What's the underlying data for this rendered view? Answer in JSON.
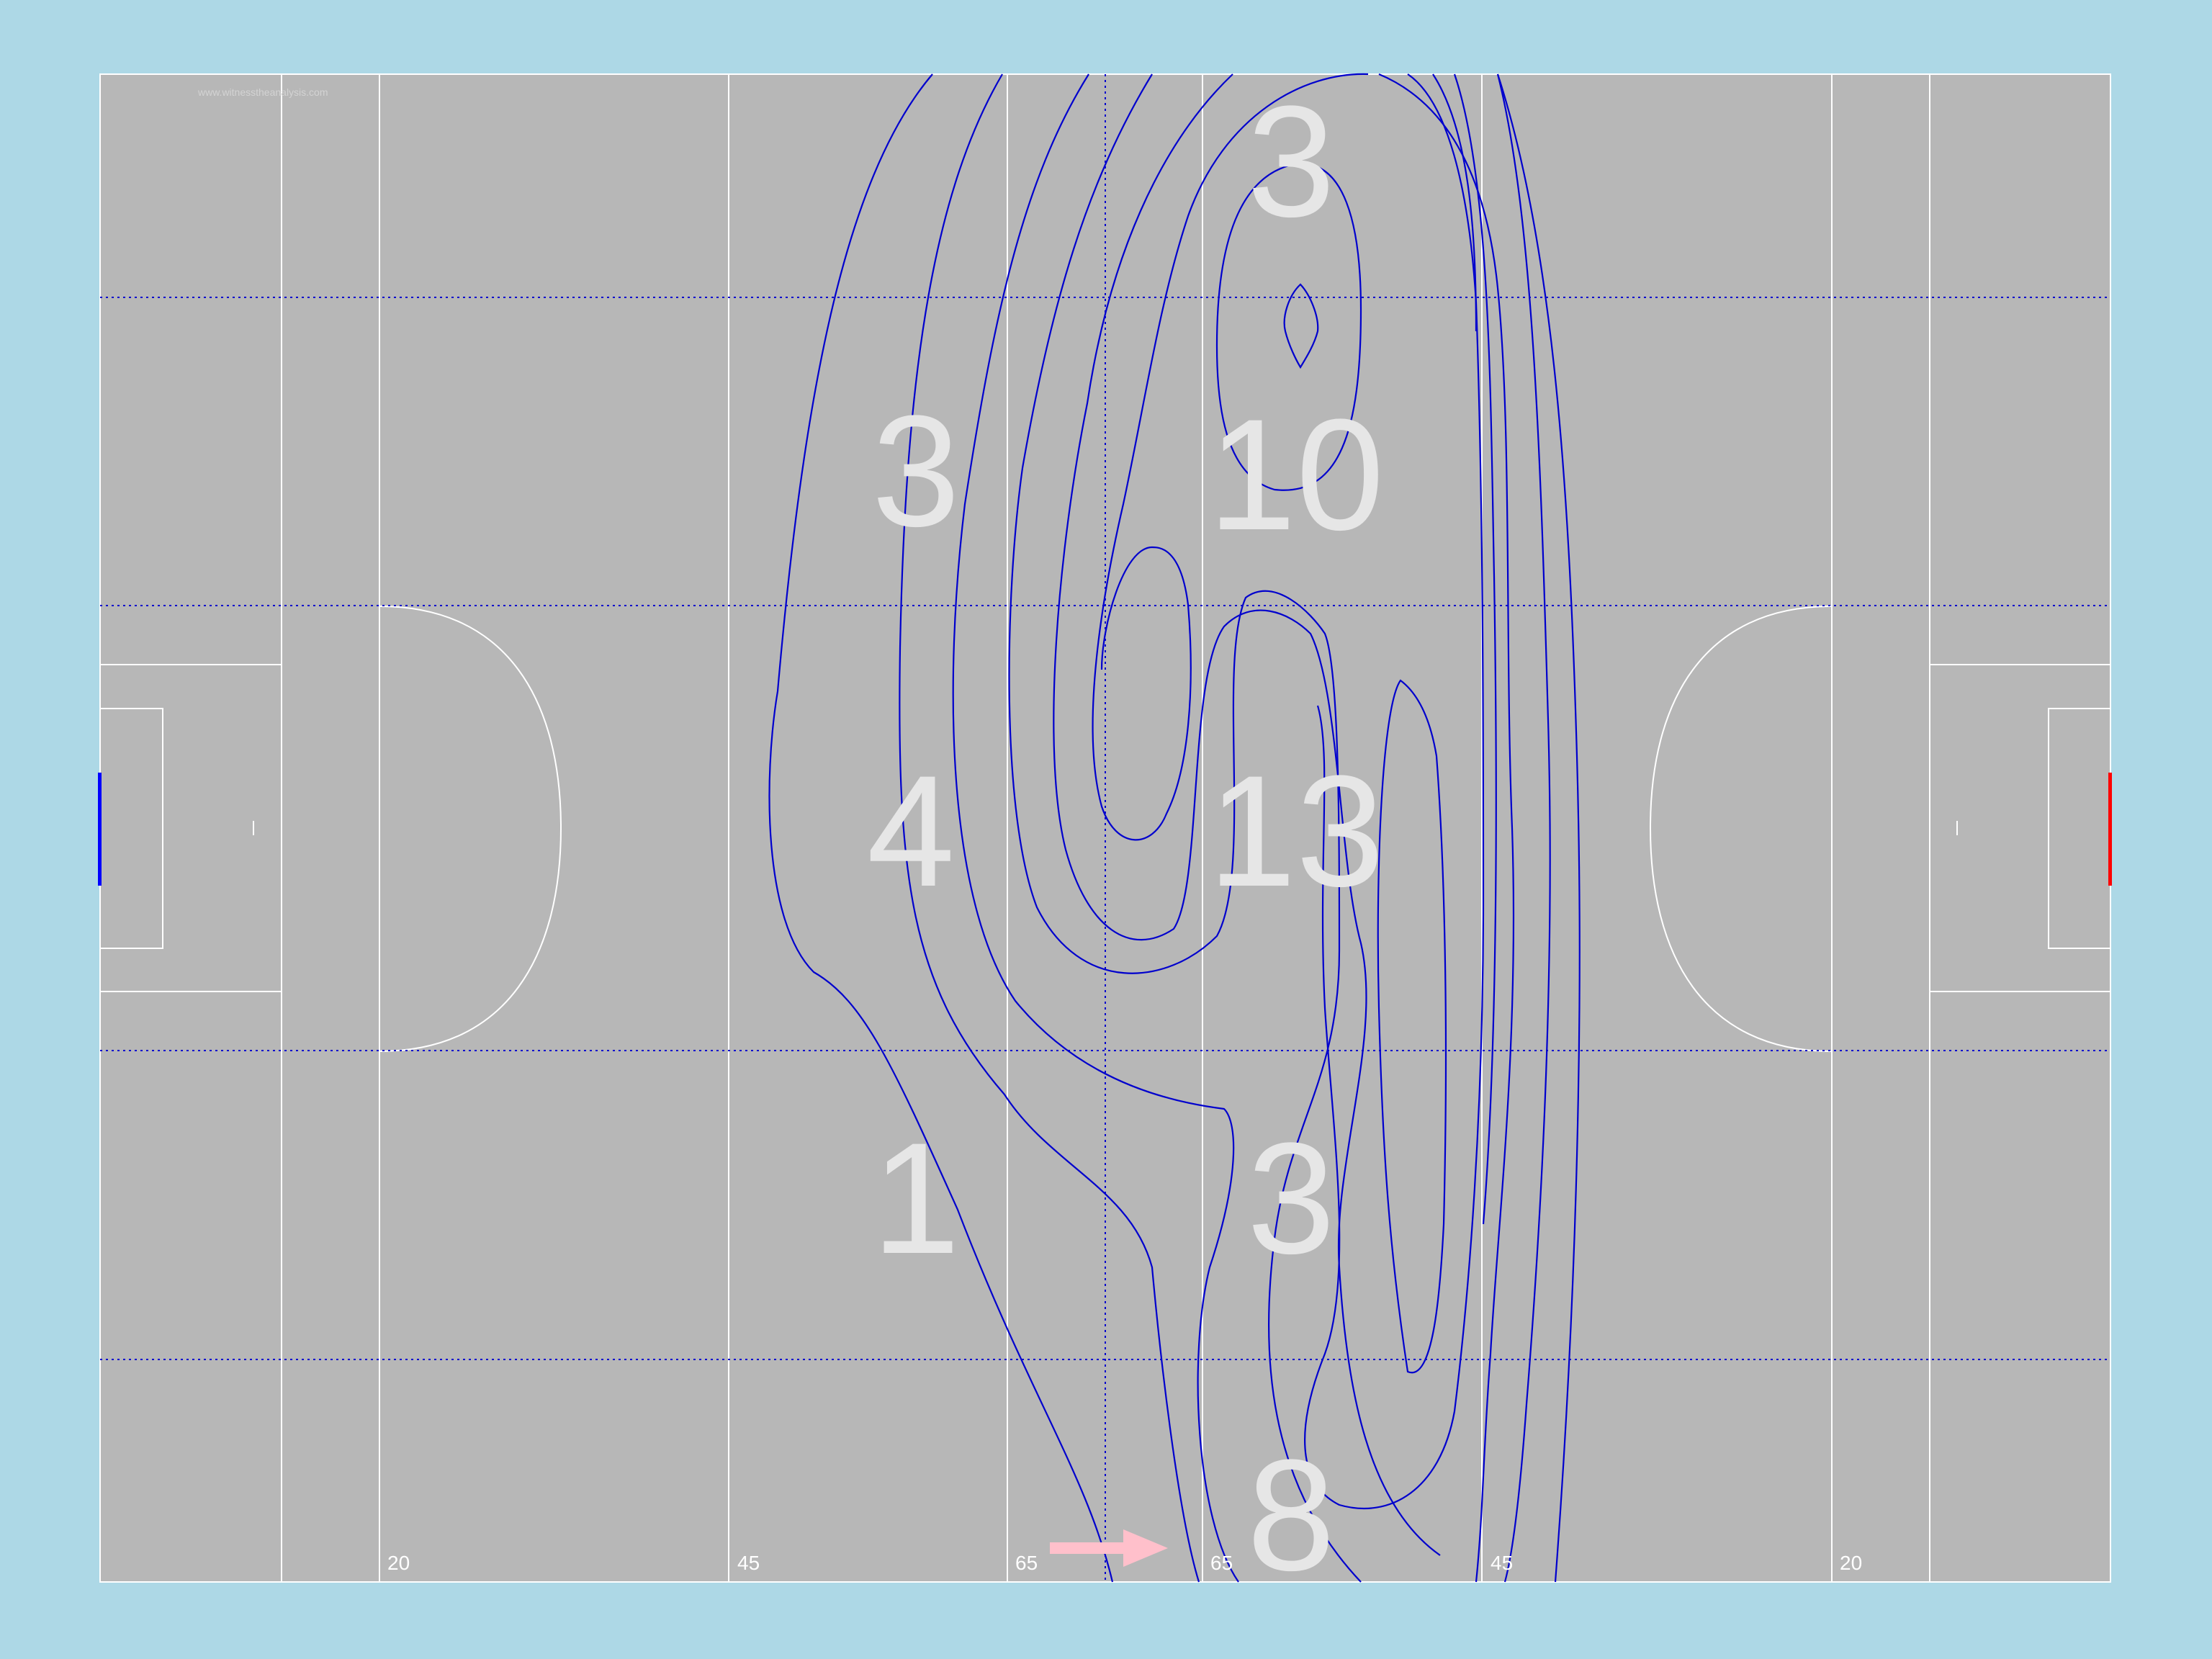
{
  "chart_data": {
    "type": "contour",
    "title": "",
    "xlabel": "",
    "ylabel": "",
    "background": "#add8e6",
    "pitch_color": "#b7b7b7",
    "line_color": "#ffffff",
    "contour_color": "#0000cd",
    "grid_color": "#0000cd",
    "left_goal_color": "#0000ff",
    "right_goal_color": "#ff0000",
    "arrow_color": "#ffc0cb",
    "pitch_distance_labels": [
      "20",
      "45",
      "65",
      "65",
      "45",
      "20"
    ],
    "zone_counts": [
      {
        "zone": "zone-1",
        "value": "3"
      },
      {
        "zone": "zone-2",
        "value": "10"
      },
      {
        "zone": "zone-3",
        "value": "3"
      },
      {
        "zone": "zone-4",
        "value": "4"
      },
      {
        "zone": "zone-5",
        "value": "13"
      },
      {
        "zone": "zone-6",
        "value": "1"
      },
      {
        "zone": "zone-7",
        "value": "3"
      },
      {
        "zone": "zone-8",
        "value": "8"
      }
    ],
    "watermark": "www.witnesstheanalysis.com",
    "grid": true,
    "direction_of_play": "right"
  }
}
